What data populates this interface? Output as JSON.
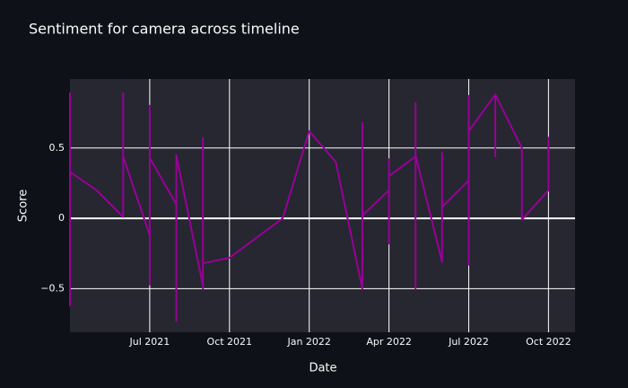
{
  "chart_data": {
    "type": "line",
    "title": "Sentiment for camera across timeline",
    "x_label": "Date",
    "y_label": "Score",
    "x": [
      "2021-04",
      "2021-04",
      "2021-04",
      "2021-04",
      "2021-04",
      "2021-04",
      "2021-04",
      "2021-04",
      "2021-04",
      "2021-04",
      "2021-05",
      "2021-06",
      "2021-06",
      "2021-06",
      "2021-06",
      "2021-07",
      "2021-07",
      "2021-07",
      "2021-07",
      "2021-07",
      "2021-07",
      "2021-07",
      "2021-07",
      "2021-07",
      "2021-08",
      "2021-08",
      "2021-08",
      "2021-09",
      "2021-09",
      "2021-09",
      "2021-09",
      "2021-10",
      "2021-12",
      "2022-01",
      "2022-02",
      "2022-03",
      "2022-03",
      "2022-03",
      "2022-04",
      "2022-04",
      "2022-04",
      "2022-04",
      "2022-05",
      "2022-05",
      "2022-05",
      "2022-05",
      "2022-05",
      "2022-05",
      "2022-06",
      "2022-06",
      "2022-06",
      "2022-06",
      "2022-06",
      "2022-07",
      "2022-07",
      "2022-07",
      "2022-07",
      "2022-07",
      "2022-07",
      "2022-07",
      "2022-07",
      "2022-07",
      "2022-08",
      "2022-08",
      "2022-08",
      "2022-08",
      "2022-08",
      "2022-09",
      "2022-09",
      "2022-09",
      "2022-09",
      "2022-09",
      "2022-10",
      "2022-10"
    ],
    "series": [
      {
        "name": "Score",
        "color": "#990099",
        "values": [
          0.75,
          -0.62,
          0.4,
          0.1,
          -0.12,
          0.57,
          -0.12,
          0.89,
          -0.53,
          0.33,
          0.2,
          0.01,
          0.89,
          0.5,
          0.44,
          -0.12,
          0.1,
          0.45,
          0.8,
          0,
          0.8,
          -0.47,
          0.45,
          0.43,
          0.1,
          -0.73,
          0.45,
          -0.48,
          0.57,
          -0.5,
          -0.32,
          -0.28,
          0,
          0.62,
          0.4,
          -0.5,
          0.68,
          0.02,
          0.2,
          0.42,
          -0.18,
          0.3,
          0.44,
          0.38,
          -0.5,
          0.82,
          0.02,
          0.45,
          -0.31,
          0.27,
          0.47,
          -0.01,
          0.08,
          0.27,
          0,
          0.87,
          0.02,
          0.43,
          -0.33,
          0.42,
          -0.2,
          0.62,
          0.88,
          0.44,
          0.88,
          0.7,
          0.88,
          0.5,
          0.45,
          0.02,
          0.03,
          -0.01,
          0.2,
          0.58
        ]
      }
    ],
    "xlim": [
      "2021-04",
      "2022-11"
    ],
    "xticks": [
      {
        "value": "2021-07",
        "label": "Jul 2021"
      },
      {
        "value": "2021-10",
        "label": "Oct 2021"
      },
      {
        "value": "2022-01",
        "label": "Jan 2022"
      },
      {
        "value": "2022-04",
        "label": "Apr 2022"
      },
      {
        "value": "2022-07",
        "label": "Jul 2022"
      },
      {
        "value": "2022-10",
        "label": "Oct 2022"
      }
    ],
    "ylim": [
      -0.81,
      0.99
    ],
    "yticks": [
      {
        "value": -0.5,
        "label": "−0.5"
      },
      0,
      0.5
    ],
    "grid": true
  }
}
